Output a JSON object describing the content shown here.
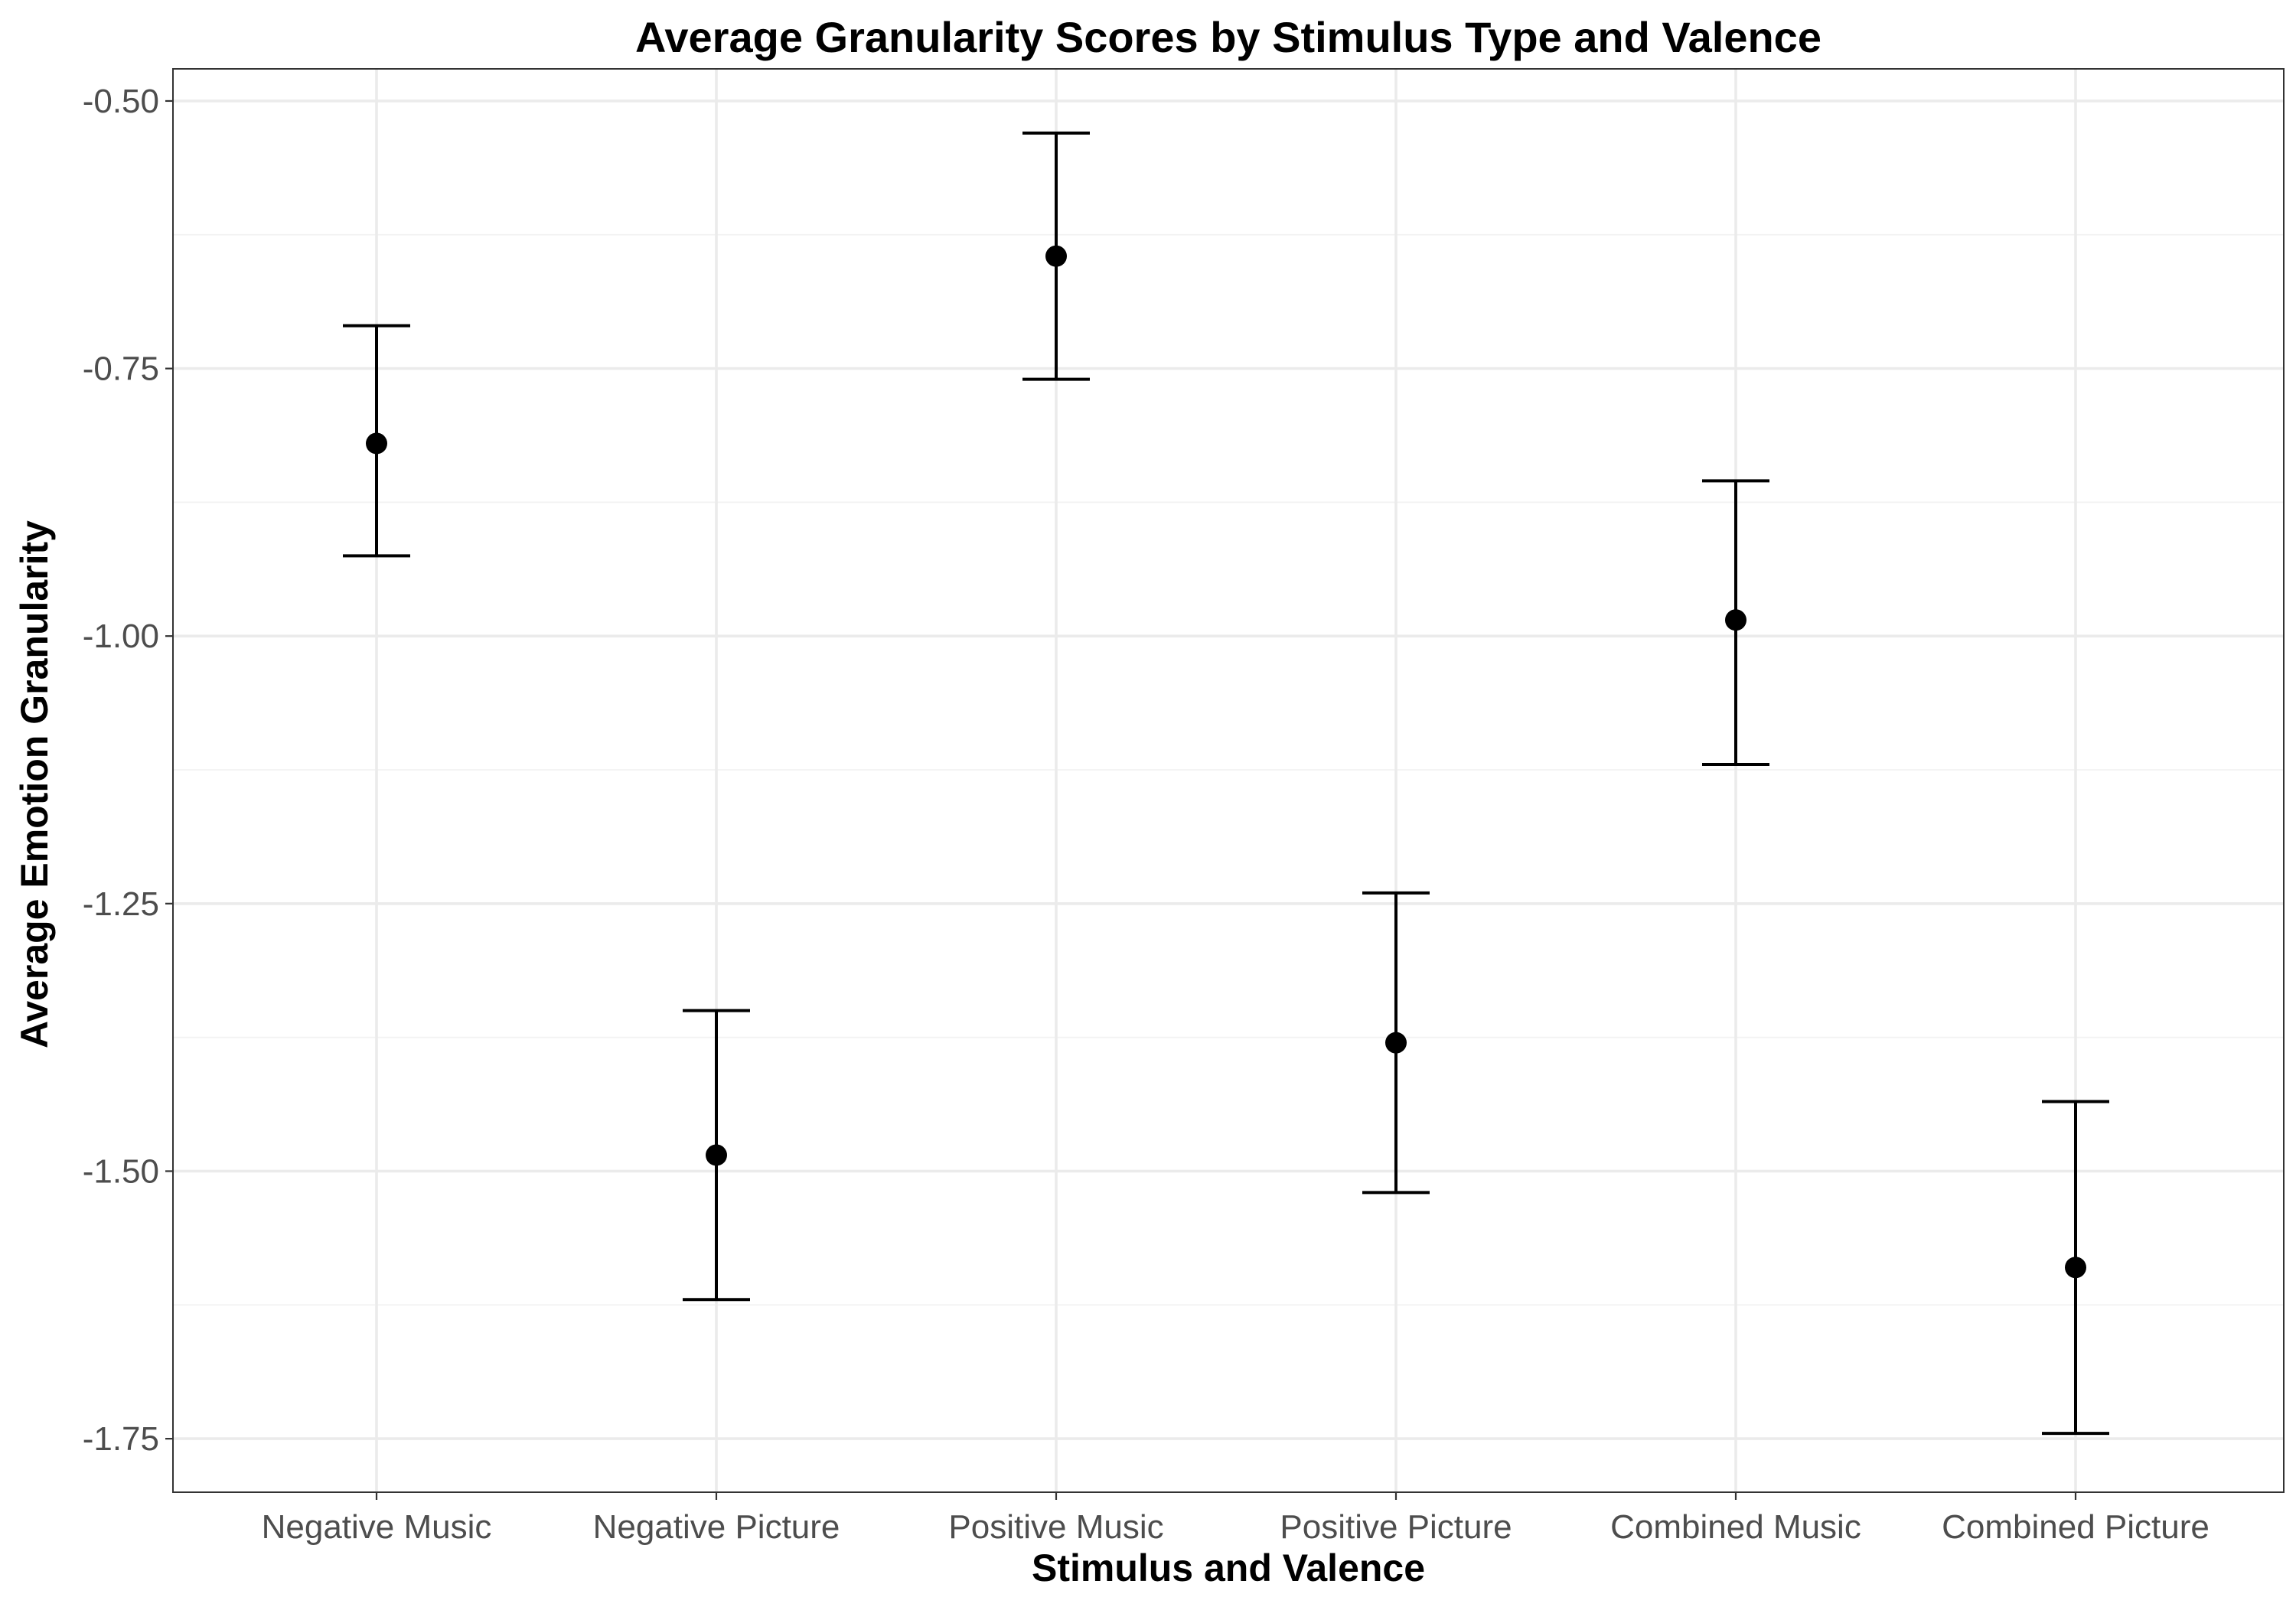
{
  "chart_data": {
    "type": "scatter",
    "title": "Average Granularity Scores by Stimulus Type and Valence",
    "xlabel": "Stimulus and Valence",
    "ylabel": "Average Emotion Granularity",
    "categories": [
      "Negative Music",
      "Negative Picture",
      "Positive Music",
      "Positive Picture",
      "Combined Music",
      "Combined Picture"
    ],
    "values": [
      -0.82,
      -1.485,
      -0.645,
      -1.38,
      -0.985,
      -1.59
    ],
    "error_low": [
      -0.925,
      -1.62,
      -0.76,
      -1.52,
      -1.12,
      -1.745
    ],
    "error_high": [
      -0.71,
      -1.35,
      -0.53,
      -1.24,
      -0.855,
      -1.435
    ],
    "ylim": [
      -1.8,
      -0.47
    ],
    "yticks": [
      -1.75,
      -1.5,
      -1.25,
      -1.0,
      -0.75,
      -0.5
    ],
    "ytick_labels": [
      "-1.75",
      "-1.50",
      "-1.25",
      "-1.00",
      "-0.75",
      "-0.50"
    ],
    "grid": true,
    "legend": "none",
    "colors": {
      "points": "#000000",
      "grid": "#ebebeb",
      "border": "#333333"
    }
  }
}
